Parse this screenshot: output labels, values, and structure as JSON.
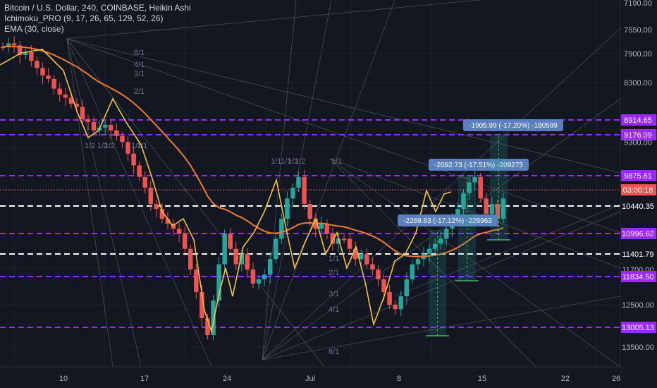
{
  "legend": {
    "line1": "Bitcoin / U.S. Dollar, 240, COINBASE, Heikin Ashi",
    "line2": "Ichimoku_PRO (9, 17, 26, 65, 129, 52, 26)",
    "line3": "EMA (30, close)"
  },
  "chart_data": {
    "type": "candlestick",
    "title": "Bitcoin / U.S. Dollar, 240, COINBASE, Heikin Ashi",
    "y_axis": {
      "inverted": true,
      "range": [
        7190,
        13700
      ],
      "ticks": [
        "7190.00",
        "7550.00",
        "7900.00",
        "8300.00",
        "12500.00",
        "13500.00"
      ],
      "tick_values": [
        7190,
        7550,
        7900,
        8300,
        12500,
        13500
      ]
    },
    "x_axis": {
      "ticks": [
        "10",
        "17",
        "24",
        "Jul",
        "8",
        "15",
        "22",
        "26"
      ]
    },
    "candles_close": [
      7800,
      7750,
      7780,
      7920,
      7880,
      8000,
      8100,
      8200,
      8250,
      8400,
      8500,
      8550,
      8650,
      8700,
      8900,
      8950,
      9100,
      9050,
      9000,
      9100,
      9200,
      9300,
      9500,
      9700,
      9900,
      10100,
      10400,
      10500,
      10700,
      10800,
      10900,
      11000,
      11300,
      11700,
      12200,
      12800,
      13200,
      12400,
      11600,
      11000,
      11300,
      11600,
      11400,
      11700,
      12000,
      11900,
      11800,
      11500,
      11100,
      10700,
      10300,
      10100,
      9900,
      10400,
      10700,
      10900,
      10800,
      11000,
      11200,
      11100,
      11100,
      11300,
      11500,
      11400,
      11600,
      11700,
      11900,
      12200,
      12500,
      12600,
      12300,
      11900,
      11600,
      11500,
      11400,
      11300,
      11200,
      11100,
      10900,
      10700,
      10500,
      10200,
      10000,
      9900,
      10300,
      10600,
      10400,
      10700,
      10300
    ],
    "ema": {
      "name": "EMA (30, close)",
      "color": "#f07b2f"
    },
    "oscillator": {
      "color": "#f5c242"
    },
    "price_levels": [
      {
        "label": "8914.65",
        "value": 8914.65,
        "color": "#9c27ff",
        "style": "dashed"
      },
      {
        "label": "9176.09",
        "value": 9176.09,
        "color": "#9c27ff",
        "style": "dashed"
      },
      {
        "label": "9300.00",
        "value": 9300,
        "color": "#9c27ff",
        "style": "tick"
      },
      {
        "label": "9875.81",
        "value": 9875.81,
        "color": "#9c27ff",
        "style": "dashed"
      },
      {
        "label": "03:00:18",
        "value": 10140,
        "color": "#ef5350",
        "style": "dotted"
      },
      {
        "label": "10440.35",
        "value": 10440.35,
        "color": "#ffffff",
        "style": "dashed-white"
      },
      {
        "label": "10996.62",
        "value": 10996.62,
        "color": "#9c27ff",
        "style": "dashed"
      },
      {
        "label": "11401.79",
        "value": 11401.79,
        "color": "#ffffff",
        "style": "dashed-white"
      },
      {
        "label": "11700.00",
        "value": 11700,
        "color": "#9c27ff",
        "style": "tick"
      },
      {
        "label": "11834.50",
        "value": 11834.5,
        "color": "#9c27ff",
        "style": "dashed"
      },
      {
        "label": "13005.13",
        "value": 13005.13,
        "color": "#9c27ff",
        "style": "dashed"
      }
    ],
    "measurements": [
      {
        "label": "-2269.63 (-17.12%) -226963"
      },
      {
        "label": "-2092.73 (-17.51%) -209273"
      },
      {
        "label": "-1905.99 (-17.20%) -190599"
      }
    ],
    "fan_labels": [
      "8/1",
      "4/1",
      "3/1",
      "2/1",
      "1/1",
      "1/2",
      "1/2",
      "1/1",
      "1/1",
      "1/2",
      "1/1",
      "8/1",
      "4/1",
      "3/1",
      "2/1",
      "1/1",
      "1/2",
      "1/3",
      "1/1"
    ]
  },
  "colors": {
    "background": "#131722",
    "bull": "#26a69a",
    "bear": "#ef5350",
    "grid": "#1e222d",
    "label_box": "#5b7fbf"
  }
}
